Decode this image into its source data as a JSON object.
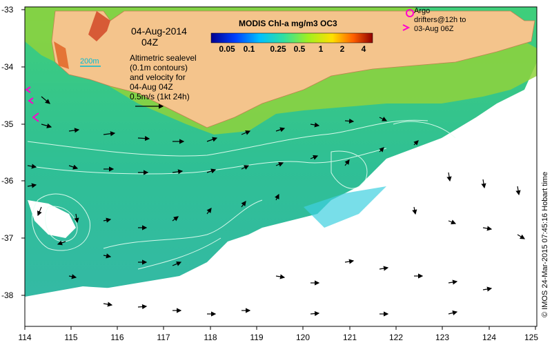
{
  "map": {
    "date_label": "04-Aug-2014",
    "time_label": "04Z",
    "isobath_label": "200m",
    "description_lines": [
      "Altimetric sealevel",
      "(0.1m contours)",
      "and velocity for",
      "04-Aug 04Z",
      "0.5m/s (1kt 24h)"
    ],
    "colorbar": {
      "title": "MODIS Chl-a mg/m3 OC3",
      "ticks": [
        "0.05",
        "0.1",
        "0.25",
        "0.5",
        "1",
        "2",
        "4"
      ]
    },
    "argo_legend_lines": [
      "Argo",
      "drifters@12h to",
      "03-Aug 06Z"
    ],
    "credit": "© IMOS 24-Mar-2015 07:45:16 Hobart time",
    "x_ticks": [
      "114",
      "115",
      "116",
      "117",
      "118",
      "119",
      "120",
      "121",
      "122",
      "123",
      "124",
      "125"
    ],
    "y_ticks": [
      "-33",
      "-34",
      "-35",
      "-36",
      "-37",
      "-38"
    ],
    "colors": {
      "land": "#f4c48c",
      "ocean_mid": "#2fc7a0",
      "coastal": "#8fd23c",
      "cloud": "#ffffff",
      "argo": "#ff00cc"
    }
  }
}
